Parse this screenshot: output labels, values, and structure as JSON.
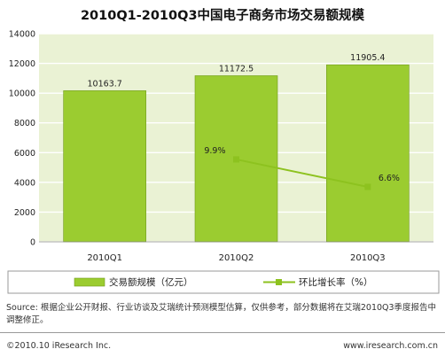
{
  "chart_data": {
    "type": "bar",
    "title": "2010Q1-2010Q3中国电子商务市场交易额规模",
    "categories": [
      "2010Q1",
      "2010Q2",
      "2010Q3"
    ],
    "ylim": [
      0,
      14000
    ],
    "yticks": [
      0,
      2000,
      4000,
      6000,
      8000,
      10000,
      12000,
      14000
    ],
    "series": [
      {
        "name": "交易额规模（亿元）",
        "type": "bar",
        "values": [
          10163.7,
          11172.5,
          11905.4
        ],
        "labels": [
          "10163.7",
          "11172.5",
          "11905.4"
        ],
        "color": "#9bcc30"
      },
      {
        "name": "环比增长率（%）",
        "type": "line",
        "x": [
          "2010Q2",
          "2010Q3"
        ],
        "values": [
          9.9,
          6.6
        ],
        "labels": [
          "9.9%",
          "6.6%"
        ],
        "color": "#8dc21f"
      }
    ],
    "legend_position": "bottom",
    "plot_background": "#eaf2d4"
  },
  "source_text": "Source: 根据企业公开财报、行业访谈及艾瑞统计预测模型估算，仅供参考，部分数据将在艾瑞2010Q3季度报告中调整修正。",
  "copyright": "©2010.10 iResearch Inc.",
  "website": "www.iresearch.com.cn"
}
